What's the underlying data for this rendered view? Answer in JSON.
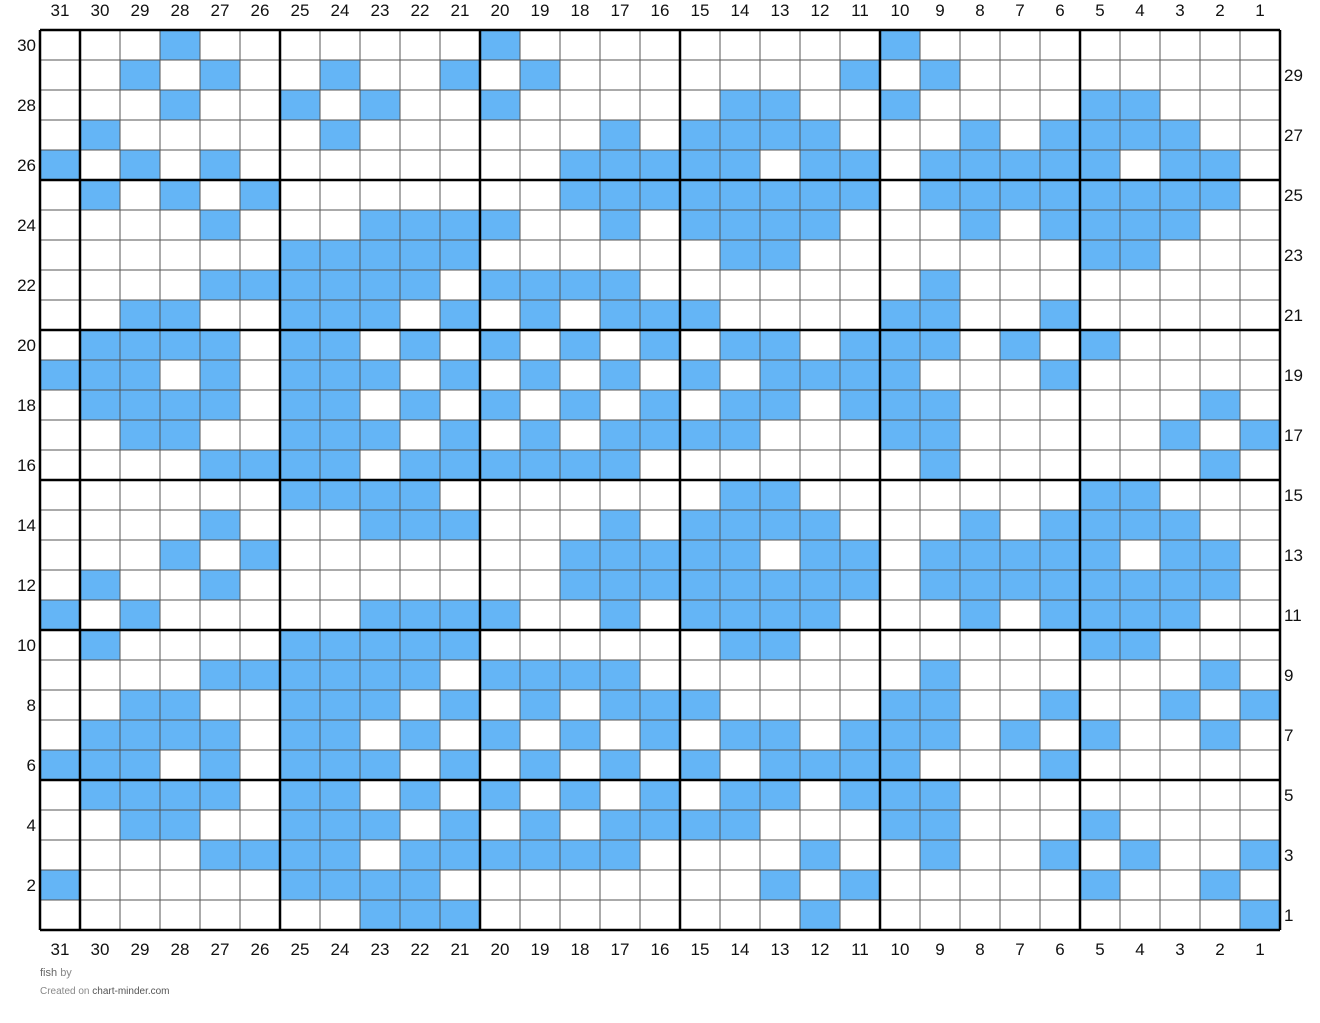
{
  "chart_data": {
    "type": "heatmap",
    "cols": 31,
    "rows": 30,
    "col_labels_order": "right-to-left",
    "row_labels": "even numbers on left, odd numbers on right",
    "fill_color": "#64b5f6",
    "empty_color": "#ffffff",
    "grid_color": "#555555",
    "major_grid_color": "#000000",
    "major_every": 5,
    "filled_cells": {
      "30": [
        28,
        20,
        10
      ],
      "29": [
        29,
        27,
        24,
        21,
        19,
        11,
        9
      ],
      "28": [
        28,
        25,
        23,
        20,
        14,
        13,
        10,
        5,
        4
      ],
      "27": [
        30,
        24,
        17,
        15,
        14,
        13,
        12,
        8,
        6,
        5,
        4,
        3
      ],
      "26": [
        31,
        29,
        27,
        18,
        17,
        16,
        15,
        14,
        12,
        11,
        9,
        8,
        7,
        6,
        5,
        3,
        2
      ],
      "25": [
        30,
        28,
        26,
        18,
        17,
        16,
        15,
        14,
        13,
        12,
        11,
        9,
        8,
        7,
        6,
        5,
        4,
        3,
        2
      ],
      "24": [
        27,
        23,
        22,
        21,
        20,
        17,
        15,
        14,
        13,
        12,
        8,
        6,
        5,
        4,
        3
      ],
      "23": [
        25,
        24,
        23,
        22,
        21,
        14,
        13,
        5,
        4
      ],
      "22": [
        27,
        26,
        25,
        24,
        23,
        22,
        20,
        19,
        18,
        17,
        9
      ],
      "21": [
        29,
        28,
        25,
        24,
        23,
        21,
        19,
        17,
        16,
        15,
        10,
        9,
        6
      ],
      "20": [
        30,
        29,
        28,
        27,
        25,
        24,
        22,
        20,
        18,
        16,
        14,
        13,
        11,
        10,
        9,
        7,
        5
      ],
      "19": [
        31,
        30,
        29,
        27,
        25,
        24,
        23,
        21,
        19,
        17,
        15,
        13,
        12,
        11,
        10,
        6
      ],
      "18": [
        30,
        29,
        28,
        27,
        25,
        24,
        22,
        20,
        18,
        16,
        14,
        13,
        11,
        10,
        9,
        2
      ],
      "17": [
        29,
        28,
        25,
        24,
        23,
        21,
        19,
        17,
        16,
        15,
        14,
        10,
        9,
        3,
        1
      ],
      "16": [
        27,
        26,
        25,
        24,
        22,
        21,
        20,
        19,
        18,
        17,
        9,
        2
      ],
      "15": [
        25,
        24,
        23,
        22,
        14,
        13,
        5,
        4
      ],
      "14": [
        27,
        23,
        22,
        21,
        17,
        15,
        14,
        13,
        12,
        8,
        6,
        5,
        4,
        3
      ],
      "13": [
        28,
        26,
        18,
        17,
        16,
        15,
        14,
        12,
        11,
        9,
        8,
        7,
        6,
        5,
        3,
        2
      ],
      "12": [
        30,
        27,
        18,
        17,
        16,
        15,
        14,
        13,
        12,
        11,
        9,
        8,
        7,
        6,
        5,
        4,
        3,
        2
      ],
      "11": [
        31,
        29,
        23,
        22,
        21,
        20,
        17,
        15,
        14,
        13,
        12,
        8,
        6,
        5,
        4,
        3
      ],
      "10": [
        30,
        25,
        24,
        23,
        22,
        21,
        14,
        13,
        5,
        4
      ],
      "9": [
        27,
        26,
        25,
        24,
        23,
        22,
        20,
        19,
        18,
        17,
        9,
        2
      ],
      "8": [
        29,
        28,
        25,
        24,
        23,
        21,
        19,
        17,
        16,
        15,
        10,
        9,
        6,
        3,
        1
      ],
      "7": [
        30,
        29,
        28,
        27,
        25,
        24,
        22,
        20,
        18,
        16,
        14,
        13,
        11,
        10,
        9,
        7,
        5,
        2
      ],
      "6": [
        31,
        30,
        29,
        27,
        25,
        24,
        23,
        21,
        19,
        17,
        15,
        13,
        12,
        11,
        10,
        6
      ],
      "5": [
        30,
        29,
        28,
        27,
        25,
        24,
        22,
        20,
        18,
        16,
        14,
        13,
        11,
        10,
        9
      ],
      "4": [
        29,
        28,
        25,
        24,
        23,
        21,
        19,
        17,
        16,
        15,
        14,
        10,
        9,
        5
      ],
      "3": [
        27,
        26,
        25,
        24,
        22,
        21,
        20,
        19,
        18,
        17,
        12,
        9,
        6,
        4,
        1
      ],
      "2": [
        31,
        25,
        24,
        23,
        22,
        13,
        11,
        5,
        2
      ],
      "1": [
        23,
        22,
        21,
        12,
        1
      ]
    }
  },
  "footer": {
    "title": "fish",
    "by": "by",
    "created_on": "Created on",
    "site": "chart-minder.com"
  }
}
